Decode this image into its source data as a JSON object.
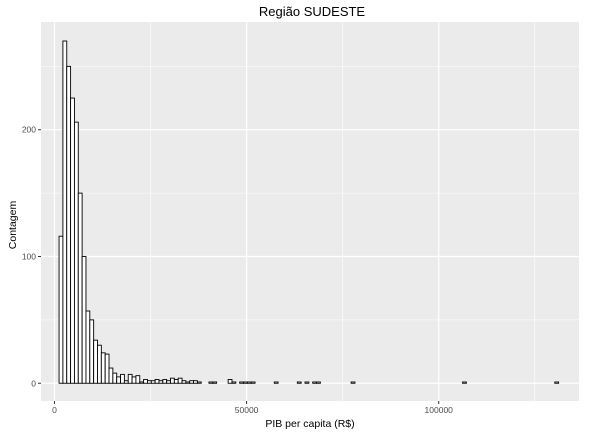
{
  "chart_data": {
    "type": "histogram",
    "title": "Região  SUDESTE",
    "xlabel": "PIB per capita (R$)",
    "ylabel": "Contagem",
    "xlim": [
      -3500,
      136500
    ],
    "ylim": [
      -14,
      285
    ],
    "x_ticks": [
      0,
      50000,
      100000
    ],
    "x_tick_labels": [
      "0",
      "50000",
      "100000"
    ],
    "y_ticks": [
      0,
      100,
      200
    ],
    "y_tick_labels": [
      "0",
      "100",
      "200"
    ],
    "grid": true,
    "legend": "none",
    "bin_start": 1200,
    "bin_width": 1000,
    "counts": [
      116,
      270,
      250,
      225,
      206,
      150,
      100,
      57,
      50,
      34,
      30,
      24,
      23,
      12,
      8,
      5,
      7,
      2,
      7,
      5,
      6,
      1,
      3,
      2,
      2,
      3,
      2,
      3,
      2,
      4,
      3,
      4,
      2,
      1,
      2,
      2,
      1,
      0,
      0,
      1,
      1,
      0,
      0,
      0,
      3,
      1,
      0,
      1,
      1,
      1,
      1,
      0,
      0,
      0,
      0,
      0,
      1,
      0,
      0,
      0,
      0,
      0,
      1,
      0,
      1,
      0,
      1,
      1,
      0,
      0,
      0,
      0,
      0,
      0,
      0,
      0,
      1,
      0,
      0,
      0,
      0,
      0,
      0,
      0,
      0,
      0,
      0,
      0,
      0,
      0,
      0,
      0,
      0,
      0,
      0,
      0,
      0,
      0,
      0,
      0,
      0,
      0,
      0,
      0,
      0,
      1,
      0,
      0,
      0,
      0,
      0,
      0,
      0,
      0,
      0,
      0,
      0,
      0,
      0,
      0,
      0,
      0,
      0,
      0,
      0,
      0,
      0,
      0,
      0,
      1
    ],
    "colors": {
      "panel": "#ebebeb",
      "grid": "#ffffff",
      "bar_fill": "#ffffff",
      "bar_stroke": "#000000"
    }
  }
}
